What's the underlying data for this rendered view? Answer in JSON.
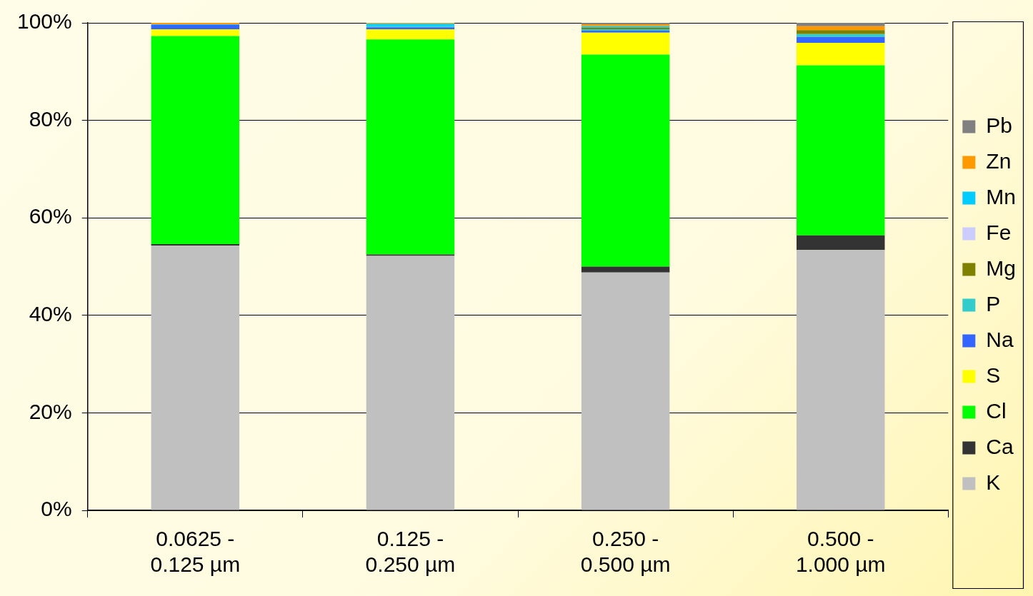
{
  "chart_data": {
    "type": "bar",
    "stacked": true,
    "categories": [
      "0.0625 - 0.125 µm",
      "0.125 - 0.250 µm",
      "0.250 - 0.500 µm",
      "0.500 - 1.000 µm"
    ],
    "series": [
      {
        "name": "K",
        "color": "#c0c0c0",
        "values": [
          54.3,
          52.2,
          48.8,
          53.4
        ]
      },
      {
        "name": "Ca",
        "color": "#333333",
        "values": [
          0.3,
          0.3,
          1.2,
          3.0
        ]
      },
      {
        "name": "Cl",
        "color": "#00ff00",
        "values": [
          42.7,
          44.1,
          43.5,
          34.9
        ]
      },
      {
        "name": "S",
        "color": "#ffff00",
        "values": [
          1.4,
          2.1,
          4.5,
          4.6
        ]
      },
      {
        "name": "Na",
        "color": "#3366ff",
        "values": [
          0.9,
          0.4,
          0.4,
          1.2
        ]
      },
      {
        "name": "P",
        "color": "#33cccc",
        "values": [
          0,
          0.2,
          0.3,
          0.6
        ]
      },
      {
        "name": "Mg",
        "color": "#808000",
        "values": [
          0,
          0,
          0.3,
          0.8
        ]
      },
      {
        "name": "Fe",
        "color": "#ccccff",
        "values": [
          0,
          null,
          null,
          0
        ]
      },
      {
        "name": "Mn",
        "color": "#00ccff",
        "values": [
          0.1,
          0.5,
          0.3,
          0
        ]
      },
      {
        "name": "Zn",
        "color": "#ff9900",
        "values": [
          0.3,
          0.2,
          0.4,
          0.8
        ]
      },
      {
        "name": "Pb",
        "color": "#808080",
        "values": [
          0,
          0,
          0.3,
          0.7
        ]
      }
    ],
    "ylim": [
      0,
      100
    ],
    "yticks": [
      {
        "value": 0,
        "label": "0%"
      },
      {
        "value": 20,
        "label": "20%"
      },
      {
        "value": 40,
        "label": "40%"
      },
      {
        "value": 60,
        "label": "60%"
      },
      {
        "value": 80,
        "label": "80%"
      },
      {
        "value": 100,
        "label": "100%"
      }
    ],
    "grid": "y",
    "legend": "right"
  }
}
